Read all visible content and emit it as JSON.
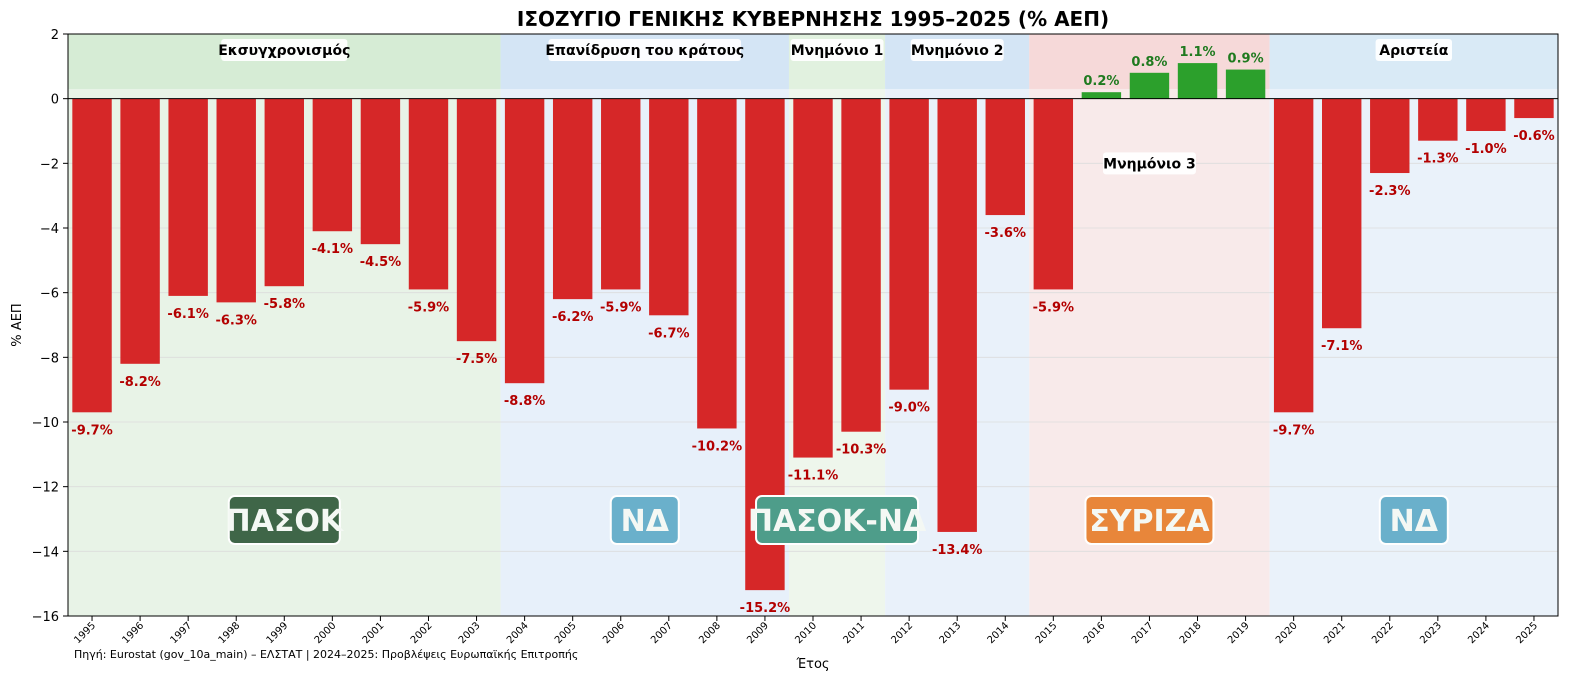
{
  "chart_data": {
    "type": "bar",
    "title": "ΙΣΟΖΥΓΙΟ ΓΕΝΙΚΗΣ ΚΥΒΕΡΝΗΣΗΣ 1995–2025 (% ΑΕΠ)",
    "xlabel": "Έτος",
    "ylabel": "% ΑΕΠ",
    "ylim": [
      -16,
      2
    ],
    "yticks": [
      "2",
      "0",
      "−2",
      "−4",
      "−6",
      "−8",
      "−10",
      "−12",
      "−14",
      "−16"
    ],
    "grid": true,
    "categories": [
      "1995",
      "1996",
      "1997",
      "1998",
      "1999",
      "2000",
      "2001",
      "2002",
      "2003",
      "2004",
      "2005",
      "2006",
      "2007",
      "2008",
      "2009",
      "2010",
      "2011",
      "2012",
      "2013",
      "2014",
      "2015",
      "2016",
      "2017",
      "2018",
      "2019",
      "2020",
      "2021",
      "2022",
      "2023",
      "2024",
      "2025"
    ],
    "values": [
      -9.7,
      -8.2,
      -6.1,
      -6.3,
      -5.8,
      -4.1,
      -4.5,
      -5.9,
      -7.5,
      -8.8,
      -6.2,
      -5.9,
      -6.7,
      -10.2,
      -15.2,
      -11.1,
      -10.3,
      -9.0,
      -13.4,
      -3.6,
      -5.9,
      0.2,
      0.8,
      1.1,
      0.9,
      -9.7,
      -7.1,
      -2.3,
      -1.3,
      -1.0,
      -0.6
    ],
    "data_labels": [
      "-9.7%",
      "-8.2%",
      "-6.1%",
      "-6.3%",
      "-5.8%",
      "-4.1%",
      "-4.5%",
      "-5.9%",
      "-7.5%",
      "-8.8%",
      "-6.2%",
      "-5.9%",
      "-6.7%",
      "-10.2%",
      "-15.2%",
      "-11.1%",
      "-10.3%",
      "-9.0%",
      "-13.4%",
      "-3.6%",
      "-5.9%",
      "0.2%",
      "0.8%",
      "1.1%",
      "0.9%",
      "-9.7%",
      "-7.1%",
      "-2.3%",
      "-1.3%",
      "-1.0%",
      "-0.6%"
    ],
    "periods": [
      {
        "label": "Εκσυγχρονισμός",
        "start": "1995",
        "end": "2003",
        "color": "#d6ecd5",
        "band": "#e8f3e7"
      },
      {
        "label": "Επανίδρυση του κράτους",
        "start": "2004",
        "end": "2009",
        "color": "#d4e5f5",
        "band": "#e7f0fa"
      },
      {
        "label": "Μνημόνιο 1",
        "start": "2010",
        "end": "2011",
        "color": "#e1f1df",
        "band": "#eef6ec"
      },
      {
        "label": "Μνημόνιο 2",
        "start": "2012",
        "end": "2014",
        "color": "#d4e5f5",
        "band": "#e9f1fa"
      },
      {
        "label": "Μνημόνιο 3",
        "start": "2015",
        "end": "2019",
        "color": "#f6d9d9",
        "band": "#f8eaea"
      },
      {
        "label": "Αριστεία",
        "start": "2020",
        "end": "2025",
        "color": "#d9eaf6",
        "band": "#eaf2fa"
      }
    ],
    "parties": [
      {
        "label": "ΠΑΣΟΚ",
        "start": "1995",
        "end": "2003",
        "color": "#3f6648"
      },
      {
        "label": "ΝΔ",
        "start": "2004",
        "end": "2009",
        "color": "#6ab0cb"
      },
      {
        "label": "ΠΑΣΟΚ-ΝΔ",
        "start": "2010",
        "end": "2011",
        "color": "#4e9d8a"
      },
      {
        "label": "ΣΥΡΙΖΑ",
        "start": "2015",
        "end": "2019",
        "color": "#e8863a"
      },
      {
        "label": "ΝΔ",
        "start": "2020",
        "end": "2025",
        "color": "#6ab0cb"
      }
    ],
    "colors": {
      "negative": "#d62728",
      "positive": "#2ca02c",
      "negative_label": "#b30000",
      "positive_label": "#1f7a1f"
    }
  },
  "footnote": "Πηγή: Eurostat (gov_10a_main) – ΕΛΣΤΑΤ | 2024–2025: Προβλέψεις Ευρωπαϊκής Επιτροπής"
}
